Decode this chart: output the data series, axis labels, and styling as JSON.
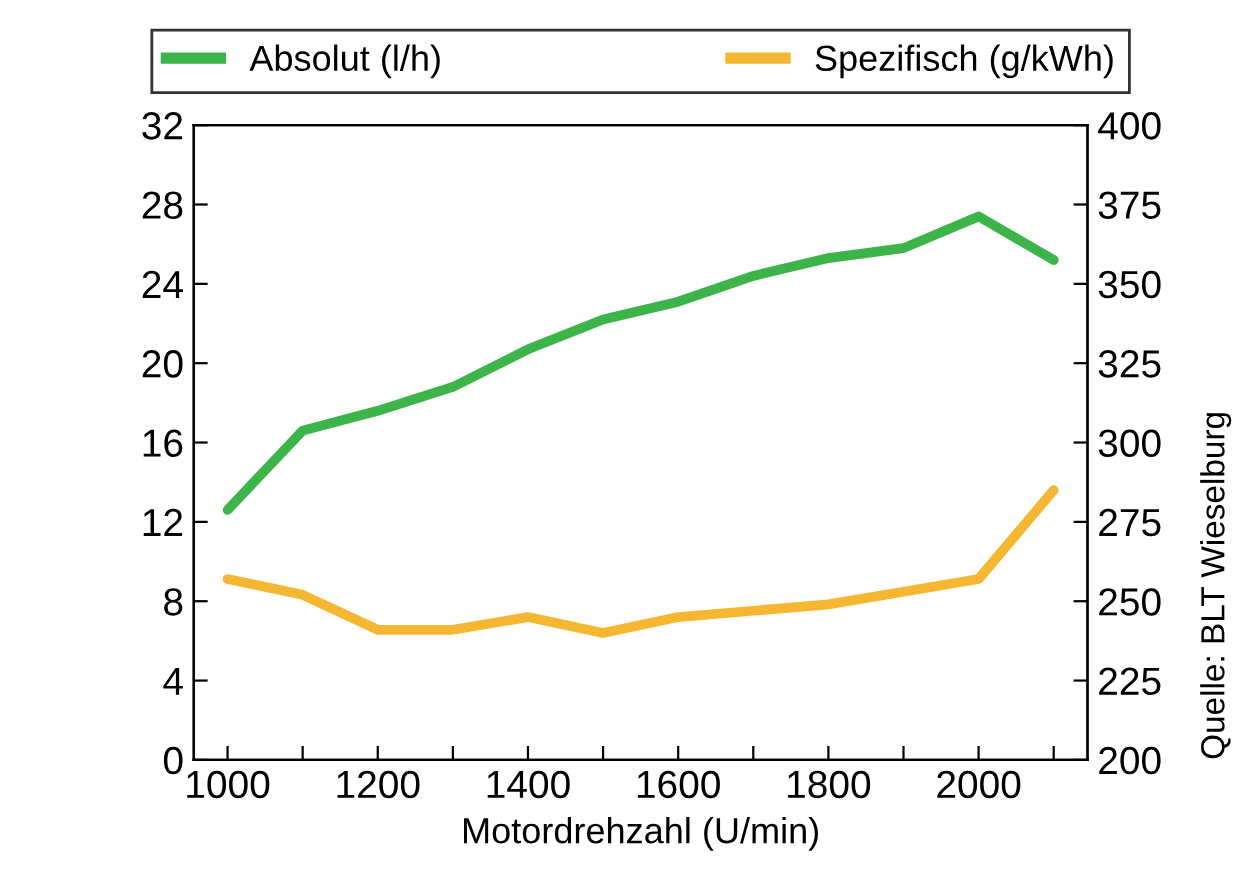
{
  "chart_data": {
    "type": "line",
    "xlabel": "Motordrehzahl (U/min)",
    "x": [
      1000,
      1100,
      1200,
      1300,
      1400,
      1500,
      1600,
      1700,
      1800,
      1900,
      2000,
      2100
    ],
    "series": [
      {
        "name": "Absolut (l/h)",
        "color": "#3cb44a",
        "values": [
          12.6,
          16.6,
          17.6,
          18.8,
          20.7,
          22.2,
          23.1,
          24.4,
          25.3,
          25.8,
          27.4,
          25.2
        ]
      },
      {
        "name": "Spezifisch (g/kWh)",
        "color": "#f5b731",
        "axis": "y2",
        "values": [
          257,
          252,
          241,
          241,
          245,
          240,
          245,
          247,
          249,
          253,
          257,
          285
        ]
      }
    ],
    "xlim": [
      955,
      2145
    ],
    "xticks": [
      1000,
      {
        "value": 1100,
        "label": null
      },
      1200,
      {
        "value": 1300,
        "label": null
      },
      1400,
      {
        "value": 1500,
        "label": null
      },
      1600,
      {
        "value": 1700,
        "label": null
      },
      1800,
      {
        "value": 1900,
        "label": null
      },
      2000,
      {
        "value": 2100,
        "label": null
      }
    ],
    "ylim": [
      0,
      32
    ],
    "yticks": [
      0,
      4,
      8,
      12,
      16,
      20,
      24,
      28,
      32
    ],
    "y2lim": [
      200,
      400
    ],
    "y2ticks": [
      200,
      225,
      250,
      275,
      300,
      325,
      350,
      375,
      400
    ],
    "legend": "top",
    "grid": false,
    "marker": "none",
    "line_style": "solid",
    "annotations": [
      "Quelle: BLT Wieselburg"
    ]
  }
}
